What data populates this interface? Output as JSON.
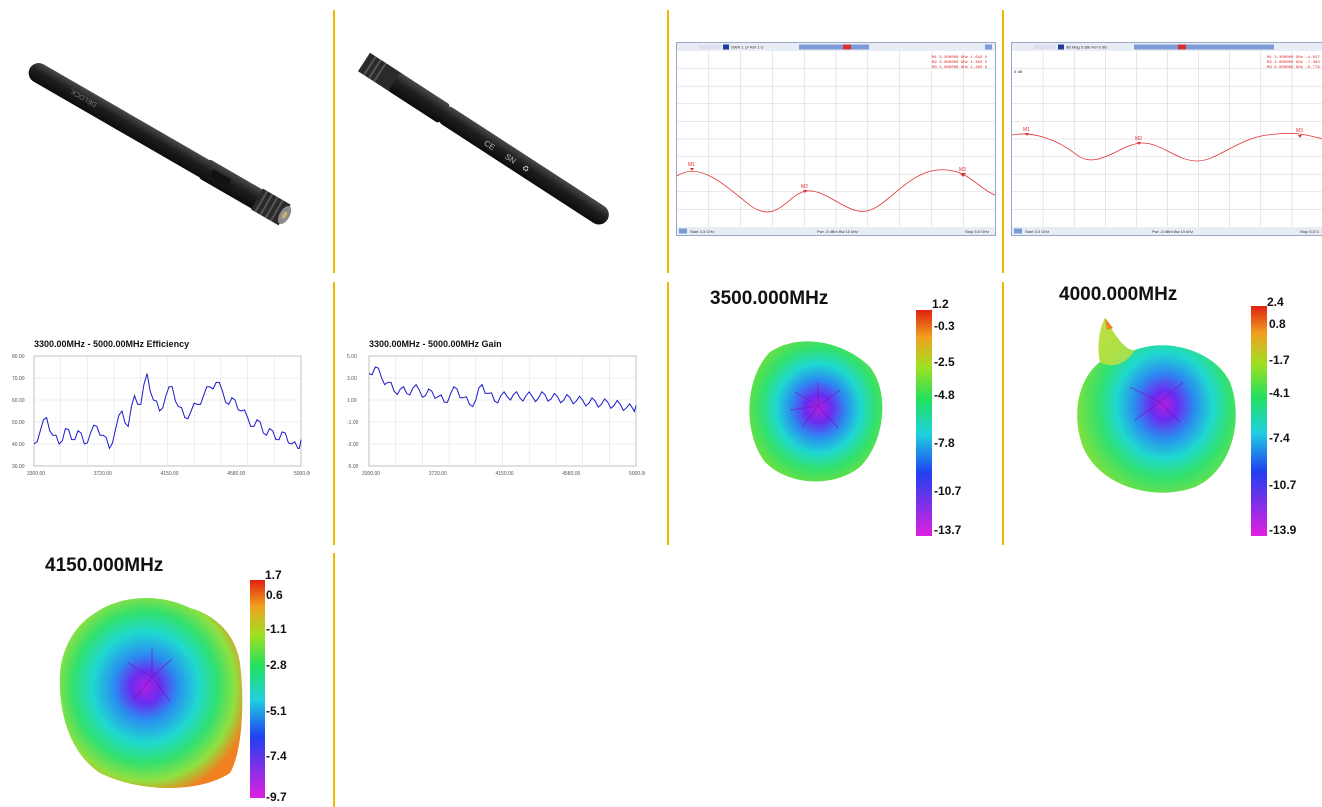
{
  "dividers_color": "#f2b705",
  "photos": [
    {
      "name": "antenna-front",
      "logo_text": "DELOCK"
    },
    {
      "name": "antenna-back",
      "marks": [
        "CE",
        "SN",
        "♻"
      ]
    }
  ],
  "vna": [
    {
      "name": "vswr-plot",
      "header": "SWR 1 U/ Ref 1 U",
      "markers": [
        "M1",
        "M2",
        "M3"
      ],
      "readout": [
        "M1  3.300000  GHz   1.642 U",
        "M2  4.000000  GHz   1.402 U",
        "M3  5.000000  GHz   1.465 U"
      ],
      "footer_start": "Start 3.3 GHz",
      "footer_mid": "Pwr -5 dBm  Bw 10 kHz",
      "footer_stop": "Stop 5.5 GHz",
      "trace_color": "#e03030"
    },
    {
      "name": "return-loss-plot",
      "header": "dB Mag 5 dB/ Ref 0 dB",
      "ref_label": "0 dB",
      "markers": [
        "M1",
        "M2",
        "M3"
      ],
      "readout": [
        "M1  3.300000  GHz  -4.627",
        "M2  4.000000  GHz  -7.303",
        "M3  5.000000  GHz  -6.778"
      ],
      "footer_start": "Start 3.3 GHz",
      "footer_mid": "Pwr -5 dBm  Bw 10 kHz",
      "footer_stop": "Stop 5.5 G",
      "trace_color": "#e03030"
    }
  ],
  "line_charts": [
    {
      "name": "efficiency-chart",
      "title": "3300.00MHz - 5000.00MHz Efficiency",
      "yticks": [
        "80.00",
        "70.00",
        "60.00",
        "50.00",
        "40.00",
        "30.00"
      ],
      "xticks": [
        "3300.00",
        "3720.00",
        "4150.00",
        "4580.00",
        "5000.00"
      ],
      "color": "#1a1acc"
    },
    {
      "name": "gain-chart",
      "title": "3300.00MHz - 5000.00MHz Gain",
      "yticks": [
        "5.00",
        "3.00",
        "1.00",
        "-1.00",
        "-3.00",
        "-5.00"
      ],
      "xticks": [
        "3300.00",
        "3720.00",
        "4150.00",
        "4580.00",
        "5000.00"
      ],
      "color": "#1a1acc"
    }
  ],
  "chart_data": [
    {
      "type": "line",
      "title": "3300.00MHz - 5000.00MHz Efficiency",
      "xlabel": "",
      "ylabel": "",
      "xlim": [
        3300,
        5000
      ],
      "ylim": [
        30,
        80
      ],
      "x": [
        3300,
        3340,
        3380,
        3420,
        3460,
        3500,
        3540,
        3580,
        3620,
        3660,
        3700,
        3740,
        3780,
        3820,
        3860,
        3900,
        3940,
        3980,
        4020,
        4060,
        4100,
        4140,
        4180,
        4220,
        4260,
        4300,
        4340,
        4380,
        4420,
        4460,
        4500,
        4540,
        4580,
        4620,
        4660,
        4700,
        4740,
        4780,
        4820,
        4860,
        4900,
        4940,
        4980,
        5000
      ],
      "series": [
        {
          "values": [
            40,
            46,
            52,
            44,
            40,
            47,
            42,
            46,
            40,
            45,
            48,
            44,
            38,
            47,
            55,
            48,
            62,
            58,
            72,
            60,
            55,
            62,
            66,
            57,
            52,
            55,
            58,
            62,
            66,
            68,
            64,
            58,
            60,
            55,
            52,
            48,
            50,
            44,
            46,
            42,
            45,
            40,
            38,
            42
          ]
        }
      ],
      "grid": true
    },
    {
      "type": "line",
      "title": "3300.00MHz - 5000.00MHz Gain",
      "xlabel": "",
      "ylabel": "",
      "xlim": [
        3300,
        5000
      ],
      "ylim": [
        -5,
        5
      ],
      "x": [
        3300,
        3340,
        3380,
        3420,
        3460,
        3500,
        3540,
        3580,
        3620,
        3660,
        3700,
        3740,
        3780,
        3820,
        3860,
        3900,
        3940,
        3980,
        4020,
        4060,
        4100,
        4140,
        4180,
        4220,
        4260,
        4300,
        4340,
        4380,
        4420,
        4460,
        4500,
        4540,
        4580,
        4620,
        4660,
        4700,
        4740,
        4780,
        4820,
        4860,
        4900,
        4940,
        4980,
        5000
      ],
      "series": [
        {
          "values": [
            3.4,
            4.0,
            3.0,
            2.6,
            1.8,
            2.0,
            1.6,
            2.1,
            1.9,
            1.4,
            1.8,
            1.3,
            0.8,
            1.6,
            2.0,
            1.2,
            0.6,
            1.0,
            2.4,
            1.6,
            0.9,
            1.4,
            1.3,
            1.5,
            1.2,
            1.4,
            1.3,
            1.2,
            1.5,
            1.1,
            1.3,
            1.0,
            1.2,
            0.9,
            1.0,
            0.7,
            0.9,
            0.6,
            0.8,
            0.5,
            0.6,
            0.3,
            0.2,
            0.5
          ]
        }
      ],
      "grid": true
    }
  ],
  "patterns": [
    {
      "name": "pattern-3500",
      "freq": "3500.000MHz",
      "scale": [
        "1.2",
        "-0.3",
        "-2.5",
        "-4.8",
        "-7.8",
        "-10.7",
        "-13.7"
      ]
    },
    {
      "name": "pattern-4000",
      "freq": "4000.000MHz",
      "scale": [
        "2.4",
        "0.8",
        "-1.7",
        "-4.1",
        "-7.4",
        "-10.7",
        "-13.9"
      ]
    },
    {
      "name": "pattern-4150",
      "freq": "4150.000MHz",
      "scale": [
        "1.7",
        "0.6",
        "-1.1",
        "-2.8",
        "-5.1",
        "-7.4",
        "-9.7"
      ]
    }
  ]
}
